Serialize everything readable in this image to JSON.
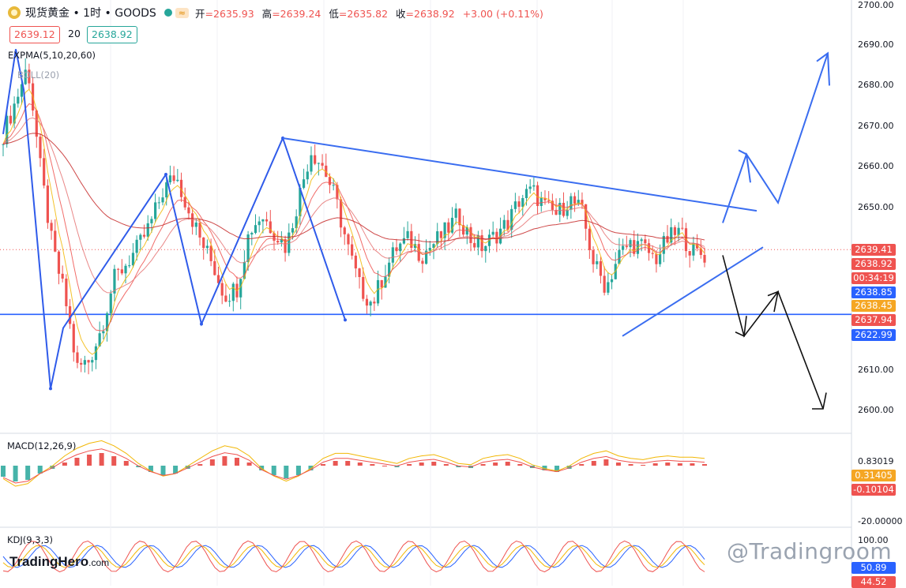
{
  "header": {
    "title": "现货黄金 • 1时 • GOODS",
    "wave_badge": "≈",
    "open_label": "开",
    "open": "=2635.93",
    "high_label": "高",
    "high": "=2639.24",
    "low_label": "低",
    "low": "=2635.82",
    "close_label": "收",
    "close": "=2638.92",
    "change": "+3.00 (+0.11%)"
  },
  "quote": {
    "bid": "2639.12",
    "spread": "20",
    "ask": "2638.92"
  },
  "indicators": {
    "expma": "EXPMA(5,10,20,60)",
    "boll": "BOLL(20)",
    "macd": "MACD(12,26,9)",
    "kdj": "KDJ(9,3,3)"
  },
  "price_axis": {
    "ticks": [
      "2700.00",
      "2690.00",
      "2680.00",
      "2670.00",
      "2660.00",
      "2650.00",
      "2610.00",
      "2600.00"
    ],
    "tags": [
      {
        "text": "2639.41",
        "color": "#ef5350"
      },
      {
        "text": "2638.92",
        "color": "#ef5350"
      },
      {
        "text": "00:34:19",
        "color": "#ef5350"
      },
      {
        "text": "2638.85",
        "color": "#2962ff"
      },
      {
        "text": "2638.45",
        "color": "#f5a623"
      },
      {
        "text": "2637.94",
        "color": "#ef5350"
      },
      {
        "text": "2622.99",
        "color": "#2962ff"
      }
    ]
  },
  "macd_axis": {
    "ticks": [
      "0.83019",
      "-20.00000"
    ],
    "tags": [
      {
        "text": "0.31405",
        "color": "#f5a623"
      },
      {
        "text": "-0.10104",
        "color": "#ef5350"
      }
    ]
  },
  "kdj_axis": {
    "ticks": [
      "100.00"
    ],
    "tags": [
      {
        "text": "50.89",
        "color": "#2962ff"
      },
      {
        "text": "44.52",
        "color": "#ef5350"
      }
    ]
  },
  "watermark": "@Tradingroom",
  "brand": {
    "name": "TradingHero",
    "suffix": ".com"
  },
  "chart_data": {
    "type": "candlestick",
    "symbol": "现货黄金",
    "interval": "1时",
    "y_range": [
      2595,
      2702
    ],
    "horizontal_support": 2622.99,
    "last_price": 2638.92,
    "swing_points": [
      {
        "label": "high",
        "price": 2688
      },
      {
        "label": "low",
        "price": 2605
      },
      {
        "label": "high",
        "price": 2658
      },
      {
        "label": "low",
        "price": 2621
      },
      {
        "label": "high",
        "price": 2667
      },
      {
        "label": "low",
        "price": 2622
      },
      {
        "label": "low",
        "price": 2618
      }
    ],
    "close_path": [
      2668,
      2676,
      2685,
      2660,
      2640,
      2628,
      2610,
      2612,
      2620,
      2632,
      2636,
      2640,
      2646,
      2654,
      2658,
      2650,
      2642,
      2636,
      2628,
      2630,
      2644,
      2648,
      2644,
      2640,
      2652,
      2664,
      2660,
      2652,
      2640,
      2630,
      2626,
      2634,
      2640,
      2642,
      2638,
      2641,
      2644,
      2648,
      2642,
      2640,
      2643,
      2646,
      2652,
      2654,
      2650,
      2648,
      2652,
      2649,
      2636,
      2630,
      2638,
      2641,
      2640,
      2637,
      2642,
      2644,
      2639,
      2638
    ],
    "drawings": [
      {
        "kind": "descending_resistance",
        "from": 2667,
        "to": 2649
      },
      {
        "kind": "ascending_support",
        "from": 2618,
        "to": 2640
      },
      {
        "kind": "bullish_projection",
        "targets": [
          2646,
          2663,
          2651,
          2688
        ]
      },
      {
        "kind": "bearish_projection",
        "targets": [
          2638,
          2618,
          2628,
          2600
        ]
      }
    ],
    "macd": {
      "label": "MACD(12,26,9)",
      "ticks": [
        0.83019,
        -20.0
      ],
      "dif": 0.31405,
      "dea": -0.10104
    },
    "kdj": {
      "label": "KDJ(9,3,3)",
      "ticks": [
        100.0
      ],
      "k": 50.89,
      "d": 44.52
    }
  }
}
